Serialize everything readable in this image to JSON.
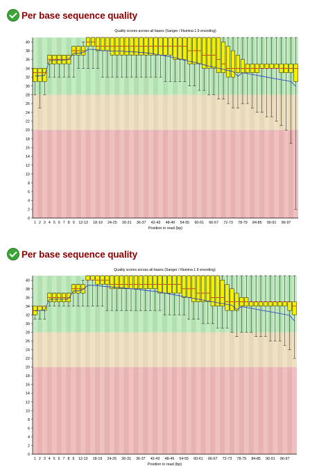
{
  "sections": [
    {
      "heading": "Per base sequence quality",
      "status_icon": "check-circle-icon"
    },
    {
      "heading": "Per base sequence quality",
      "status_icon": "check-circle-icon"
    }
  ],
  "chart_data": [
    {
      "type": "boxplot",
      "title": "Quality scores across all bases (Sanger / Illumina 1.9 encoding)",
      "xlabel": "Position in read (bp)",
      "ylabel": "",
      "ylim": [
        0,
        41
      ],
      "yticks": [
        0,
        2,
        4,
        6,
        8,
        10,
        12,
        14,
        16,
        18,
        20,
        22,
        24,
        26,
        28,
        30,
        32,
        34,
        36,
        38,
        40
      ],
      "zones": [
        {
          "from": 28,
          "to": 41,
          "color": "#b2e0b2"
        },
        {
          "from": 20,
          "to": 28,
          "color": "#e6d8b8"
        },
        {
          "from": 0,
          "to": 20,
          "color": "#e6b2b2"
        }
      ],
      "categories": [
        "1",
        "2",
        "3",
        "4",
        "5",
        "6",
        "7",
        "8",
        "9",
        "10-11",
        "12-13",
        "14-15",
        "16-17",
        "18-19",
        "20-21",
        "22-23",
        "24-25",
        "26-27",
        "28-29",
        "30-31",
        "32-33",
        "34-35",
        "36-37",
        "38-39",
        "40-41",
        "42-43",
        "44-45",
        "46-47",
        "48-49",
        "50-51",
        "52-53",
        "54-55",
        "56-57",
        "58-59",
        "60-61",
        "62-63",
        "64-65",
        "66-67",
        "68-69",
        "70-71",
        "72-73",
        "74-75",
        "76-77",
        "78-79",
        "80-81",
        "82-83",
        "84-85",
        "86-87",
        "88-89",
        "90-91",
        "92-93",
        "94-95",
        "96-97",
        "98-99",
        "100"
      ],
      "tick_labels": [
        "1",
        "2",
        "3",
        "4",
        "5",
        "6",
        "7",
        "8",
        "9",
        "12-13",
        "18-19",
        "24-25",
        "30-31",
        "36-37",
        "42-43",
        "48-49",
        "54-55",
        "60-61",
        "66-67",
        "72-73",
        "78-79",
        "84-85",
        "90-91",
        "96-97"
      ],
      "q1": [
        31,
        31,
        31,
        35,
        35,
        35,
        35,
        35,
        37,
        37,
        37,
        39,
        39,
        38,
        38,
        38,
        37,
        37,
        37,
        37,
        37,
        37,
        37,
        37,
        37,
        37,
        37,
        37,
        37,
        36,
        36,
        36,
        35,
        35,
        35,
        34,
        34,
        34,
        33,
        33,
        32,
        32,
        33,
        33,
        33,
        33,
        33,
        34,
        34,
        34,
        34,
        33,
        33,
        33,
        31
      ],
      "q3": [
        34,
        34,
        34,
        37,
        37,
        37,
        37,
        37,
        39,
        39,
        39,
        41,
        41,
        41,
        41,
        41,
        41,
        41,
        41,
        41,
        41,
        41,
        41,
        41,
        41,
        41,
        41,
        41,
        41,
        41,
        41,
        41,
        41,
        41,
        41,
        41,
        41,
        41,
        41,
        40,
        39,
        38,
        37,
        36,
        35,
        35,
        35,
        35,
        35,
        35,
        35,
        35,
        35,
        35,
        35
      ],
      "median": [
        33,
        33,
        33,
        36,
        36,
        36,
        36,
        36,
        38,
        38,
        38,
        40,
        40,
        39,
        39,
        39,
        39,
        39,
        39,
        39,
        39,
        39,
        39,
        39,
        39,
        39,
        39,
        39,
        39,
        39,
        39,
        39,
        38,
        38,
        38,
        37,
        37,
        37,
        36,
        35,
        34,
        34,
        34,
        34,
        34,
        34,
        34,
        34,
        34,
        34,
        34,
        34,
        34,
        34,
        34
      ],
      "low": [
        28,
        25,
        28,
        32,
        32,
        32,
        32,
        32,
        32,
        34,
        34,
        34,
        34,
        34,
        32,
        32,
        32,
        32,
        32,
        32,
        32,
        32,
        32,
        32,
        32,
        32,
        32,
        31,
        31,
        31,
        31,
        31,
        30,
        30,
        29,
        29,
        28,
        28,
        27,
        27,
        26,
        25,
        25,
        26,
        26,
        25,
        24,
        24,
        23,
        23,
        22,
        21,
        20,
        17,
        2
      ],
      "high": [
        34,
        34,
        34,
        37,
        37,
        37,
        37,
        37,
        39,
        39,
        40,
        41,
        41,
        41,
        41,
        41,
        41,
        41,
        41,
        41,
        41,
        41,
        41,
        41,
        41,
        41,
        41,
        41,
        41,
        41,
        41,
        41,
        41,
        41,
        41,
        41,
        41,
        41,
        41,
        41,
        41,
        41,
        41,
        41,
        41,
        41,
        41,
        41,
        41,
        41,
        41,
        41,
        41,
        41,
        41
      ],
      "mean": [
        32.3,
        32.3,
        32.4,
        35.8,
        35.8,
        35.9,
        35.9,
        36.1,
        37.4,
        37.4,
        37.6,
        38.3,
        38.3,
        38.2,
        38.0,
        38.0,
        37.9,
        37.9,
        37.9,
        37.8,
        37.8,
        37.7,
        37.6,
        37.5,
        37.4,
        37.2,
        37.0,
        36.8,
        36.6,
        36.4,
        36.1,
        35.8,
        35.6,
        35.4,
        35.1,
        34.8,
        34.5,
        34.3,
        34.0,
        33.8,
        33.5,
        33.3,
        32.2,
        33.0,
        32.8,
        32.6,
        32.4,
        32.2,
        32.0,
        31.8,
        31.6,
        31.4,
        31.2,
        31.0,
        29.9
      ]
    },
    {
      "type": "boxplot",
      "title": "Quality scores across all bases (Sanger / Illumina 1.9 encoding)",
      "xlabel": "Position in read (bp)",
      "ylabel": "",
      "ylim": [
        0,
        41
      ],
      "yticks": [
        0,
        2,
        4,
        6,
        8,
        10,
        12,
        14,
        16,
        18,
        20,
        22,
        24,
        26,
        28,
        30,
        32,
        34,
        36,
        38,
        40
      ],
      "zones": [
        {
          "from": 28,
          "to": 41,
          "color": "#b2e0b2"
        },
        {
          "from": 20,
          "to": 28,
          "color": "#e6d8b8"
        },
        {
          "from": 0,
          "to": 20,
          "color": "#e6b2b2"
        }
      ],
      "categories": [
        "1",
        "2",
        "3",
        "4",
        "5",
        "6",
        "7",
        "8",
        "9",
        "10-11",
        "12-13",
        "14-15",
        "16-17",
        "18-19",
        "20-21",
        "22-23",
        "24-25",
        "26-27",
        "28-29",
        "30-31",
        "32-33",
        "34-35",
        "36-37",
        "38-39",
        "40-41",
        "42-43",
        "44-45",
        "46-47",
        "48-49",
        "50-51",
        "52-53",
        "54-55",
        "56-57",
        "58-59",
        "60-61",
        "62-63",
        "64-65",
        "66-67",
        "68-69",
        "70-71",
        "72-73",
        "74-75",
        "76-77",
        "78-79",
        "80-81",
        "82-83",
        "84-85",
        "86-87",
        "88-89",
        "90-91",
        "92-93",
        "94-95",
        "96-97",
        "98-99",
        "100"
      ],
      "tick_labels": [
        "1",
        "2",
        "3",
        "4",
        "5",
        "6",
        "7",
        "8",
        "9",
        "12-13",
        "18-19",
        "24-25",
        "30-31",
        "36-37",
        "42-43",
        "48-49",
        "54-55",
        "60-61",
        "66-67",
        "72-73",
        "78-79",
        "84-85",
        "90-91",
        "96-97"
      ],
      "q1": [
        32,
        33,
        33,
        35,
        35,
        35,
        35,
        35,
        37,
        37,
        37,
        40,
        40,
        39,
        39,
        39,
        38,
        38,
        38,
        38,
        38,
        38,
        38,
        38,
        38,
        38,
        37,
        37,
        37,
        37,
        37,
        36,
        36,
        35,
        35,
        35,
        35,
        34,
        34,
        34,
        33,
        33,
        33,
        34,
        34,
        34,
        34,
        34,
        34,
        34,
        34,
        34,
        34,
        33,
        32
      ],
      "q3": [
        34,
        34,
        34,
        37,
        37,
        37,
        37,
        37,
        39,
        39,
        39,
        41,
        41,
        41,
        41,
        41,
        41,
        41,
        41,
        41,
        41,
        41,
        41,
        41,
        41,
        41,
        41,
        41,
        41,
        41,
        41,
        41,
        41,
        41,
        41,
        41,
        41,
        41,
        41,
        40,
        39,
        38,
        37,
        36,
        36,
        35,
        35,
        35,
        35,
        35,
        35,
        35,
        35,
        35,
        35
      ],
      "median": [
        33,
        34,
        34,
        36,
        36,
        36,
        36,
        36,
        38,
        38,
        38,
        40,
        40,
        40,
        40,
        40,
        39,
        39,
        39,
        39,
        39,
        39,
        39,
        39,
        39,
        39,
        39,
        39,
        39,
        39,
        39,
        38,
        38,
        38,
        37,
        37,
        37,
        36,
        36,
        36,
        35,
        35,
        35,
        35,
        35,
        35,
        35,
        35,
        35,
        35,
        35,
        35,
        35,
        35,
        34
      ],
      "low": [
        31,
        31,
        31,
        34,
        34,
        34,
        34,
        34,
        34,
        34,
        34,
        34,
        34,
        34,
        34,
        33,
        33,
        33,
        33,
        33,
        33,
        33,
        33,
        33,
        33,
        33,
        33,
        32,
        32,
        32,
        32,
        32,
        31,
        31,
        31,
        30,
        30,
        30,
        29,
        29,
        29,
        28,
        27,
        28,
        28,
        28,
        27,
        27,
        27,
        26,
        26,
        26,
        25,
        24,
        22
      ],
      "high": [
        34,
        34,
        34,
        37,
        37,
        37,
        37,
        37,
        39,
        39,
        40,
        41,
        41,
        41,
        41,
        41,
        41,
        41,
        41,
        41,
        41,
        41,
        41,
        41,
        41,
        41,
        41,
        41,
        41,
        41,
        41,
        41,
        41,
        41,
        41,
        41,
        41,
        41,
        41,
        41,
        41,
        41,
        41,
        41,
        41,
        41,
        41,
        41,
        41,
        41,
        41,
        41,
        41,
        41,
        41
      ],
      "mean": [
        32.9,
        33.0,
        33.1,
        35.6,
        35.6,
        35.6,
        35.6,
        35.7,
        37.5,
        37.5,
        37.8,
        38.8,
        38.8,
        38.7,
        38.6,
        38.5,
        38.4,
        38.3,
        38.2,
        38.1,
        38.0,
        37.9,
        37.8,
        37.6,
        37.5,
        37.4,
        37.2,
        37.0,
        36.8,
        36.6,
        36.4,
        36.2,
        36.0,
        35.8,
        35.6,
        35.4,
        35.2,
        35.0,
        34.8,
        34.6,
        34.4,
        34.2,
        33.2,
        33.9,
        33.7,
        33.5,
        33.3,
        33.1,
        32.9,
        32.7,
        32.5,
        32.3,
        32.1,
        31.9,
        30.6
      ]
    }
  ]
}
